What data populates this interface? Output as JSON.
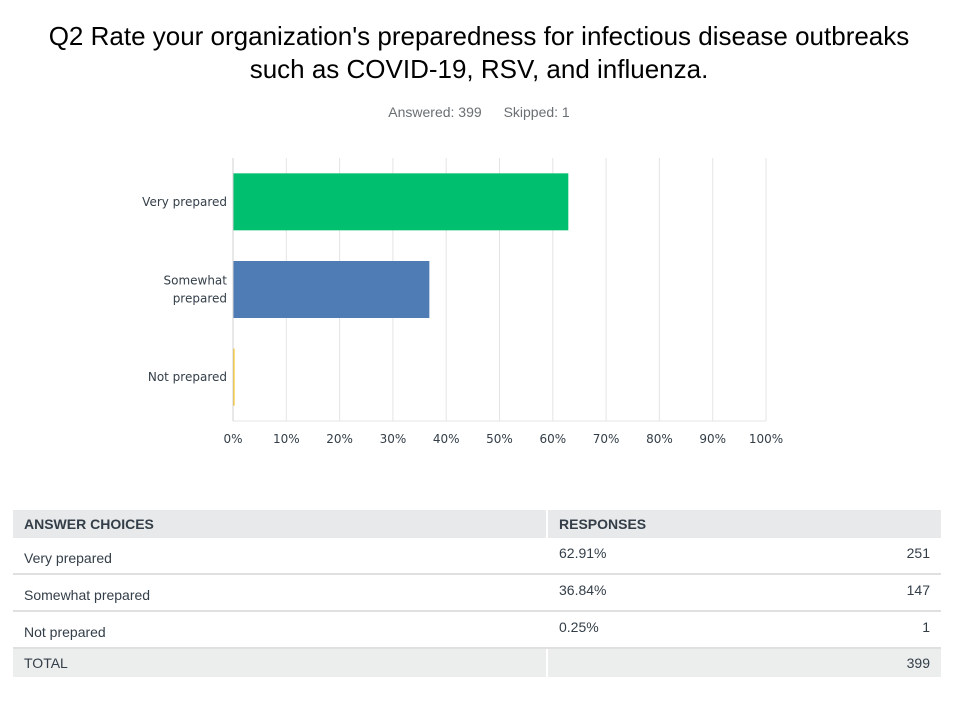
{
  "question": {
    "title_line1": "Q2 Rate your organization's preparedness for infectious disease outbreaks",
    "title_line2": "such as COVID-19, RSV, and influenza.",
    "answered": "Answered: 399",
    "skipped": "Skipped: 1"
  },
  "chart_data": {
    "type": "bar",
    "orientation": "horizontal",
    "categories": [
      [
        "Very prepared"
      ],
      [
        "Somewhat",
        "prepared"
      ],
      [
        "Not prepared"
      ]
    ],
    "values": [
      62.91,
      36.84,
      0.25
    ],
    "colors": [
      "#00bf6f",
      "#507cb6",
      "#f9be00"
    ],
    "xlim": [
      0,
      100
    ],
    "ticks": [
      "0%",
      "10%",
      "20%",
      "30%",
      "40%",
      "50%",
      "60%",
      "70%",
      "80%",
      "90%",
      "100%"
    ],
    "grid": true
  },
  "table": {
    "header_choices": "ANSWER CHOICES",
    "header_responses": "RESPONSES",
    "rows": [
      {
        "choice": "Very prepared",
        "percent": "62.91%",
        "count": "251"
      },
      {
        "choice": "Somewhat prepared",
        "percent": "36.84%",
        "count": "147"
      },
      {
        "choice": "Not prepared",
        "percent": "0.25%",
        "count": "1"
      }
    ],
    "total_label": "TOTAL",
    "total_count": "399"
  }
}
